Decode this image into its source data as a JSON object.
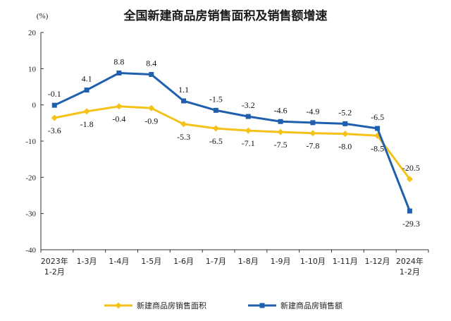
{
  "chart_data": {
    "type": "line",
    "title": "全国新建商品房销售面积及销售额增速",
    "ylabel": "(%)",
    "ylim": [
      -40,
      20
    ],
    "yticks": [
      20,
      10,
      0,
      -10,
      -20,
      -30,
      -40
    ],
    "grid": false,
    "legend_position": "bottom",
    "categories": [
      [
        "2023年",
        "1-2月"
      ],
      [
        "1-3月"
      ],
      [
        "1-4月"
      ],
      [
        "1-5月"
      ],
      [
        "1-6月"
      ],
      [
        "1-7月"
      ],
      [
        "1-8月"
      ],
      [
        "1-9月"
      ],
      [
        "1-10月"
      ],
      [
        "1-11月"
      ],
      [
        "1-12月"
      ],
      [
        "2024年",
        "1-2月"
      ]
    ],
    "series": [
      {
        "name": "新建商品房销售面积",
        "color": "#f5c21a",
        "marker": "diamond",
        "values": [
          -3.6,
          -1.8,
          -0.4,
          -0.9,
          -5.3,
          -6.5,
          -7.1,
          -7.5,
          -7.8,
          -8.0,
          -8.5,
          -20.5
        ]
      },
      {
        "name": "新建商品房销售额",
        "color": "#1f5fae",
        "marker": "square",
        "values": [
          -0.1,
          4.1,
          8.8,
          8.4,
          1.1,
          -1.5,
          -3.2,
          -4.6,
          -4.9,
          -5.2,
          -6.5,
          -29.3
        ]
      }
    ]
  }
}
